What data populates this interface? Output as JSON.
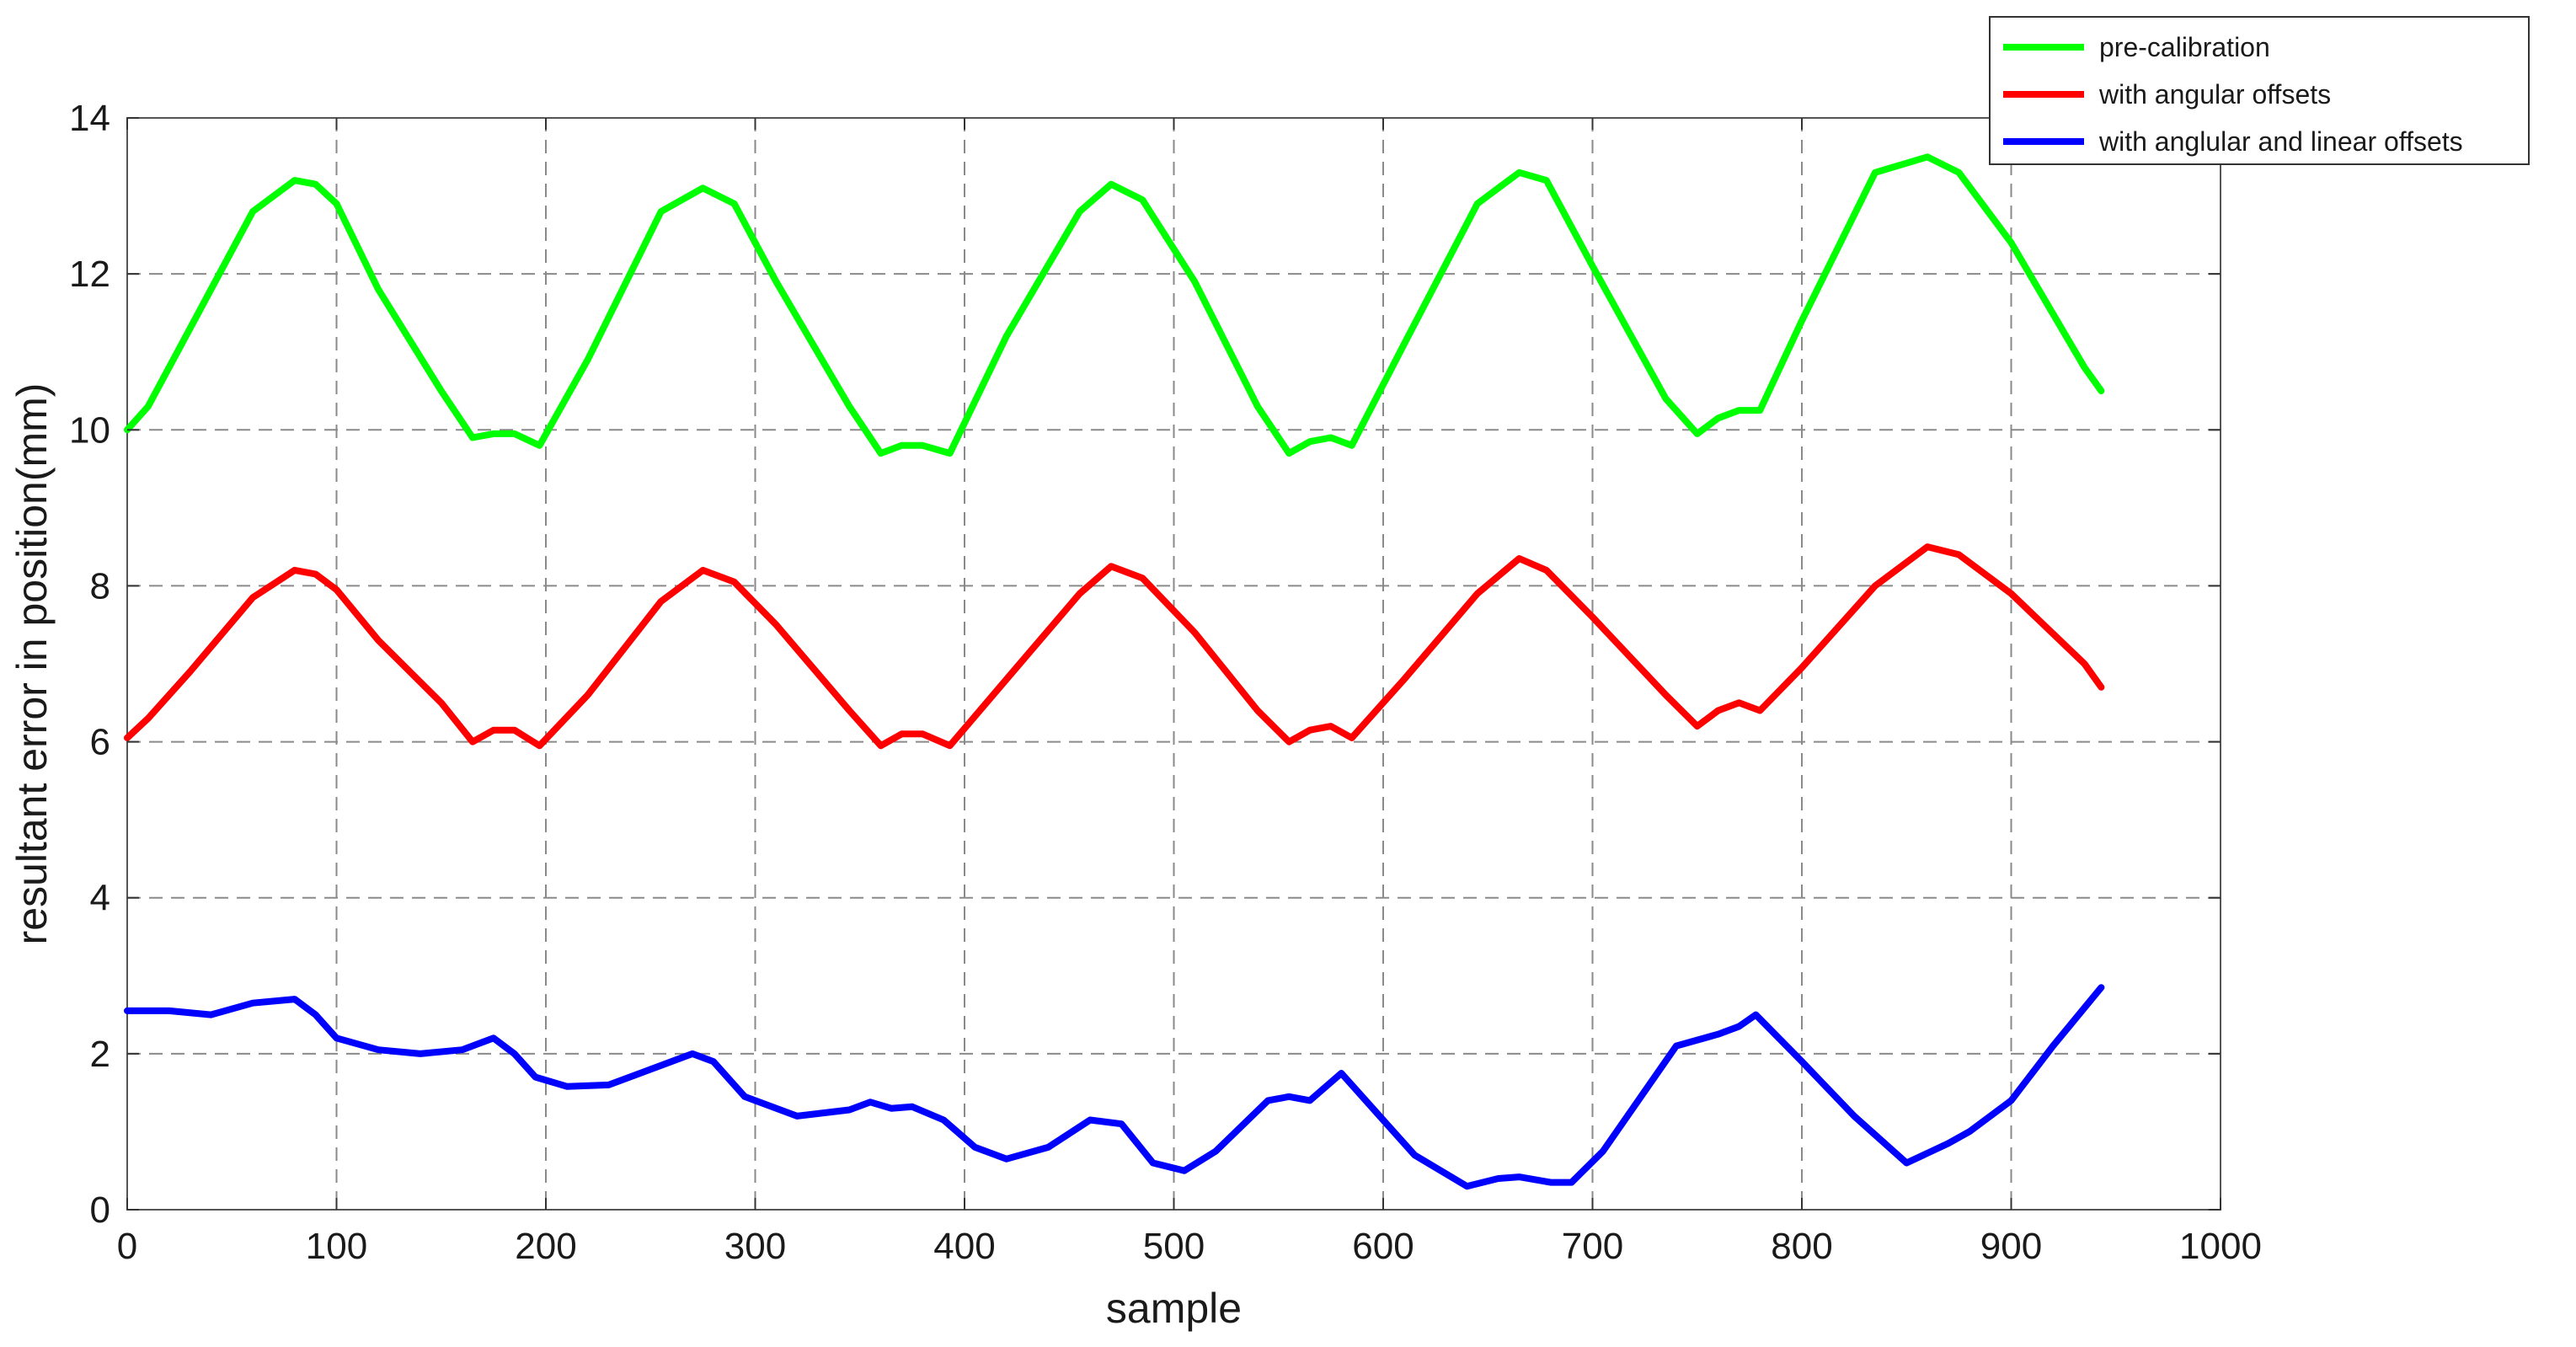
{
  "chart_data": {
    "type": "line",
    "xlabel": "sample",
    "ylabel": "resultant error in position(mm)",
    "xlim": [
      0,
      1000
    ],
    "ylim": [
      0,
      14
    ],
    "xticks": [
      0,
      100,
      200,
      300,
      400,
      500,
      600,
      700,
      800,
      900,
      1000
    ],
    "yticks": [
      0,
      2,
      4,
      6,
      8,
      10,
      12,
      14
    ],
    "grid": true,
    "legend_position": "top-right",
    "series": [
      {
        "name": "pre-calibration",
        "color": "#00ff00",
        "x": [
          0,
          10,
          30,
          60,
          80,
          90,
          100,
          120,
          150,
          165,
          175,
          185,
          197,
          220,
          255,
          275,
          290,
          310,
          345,
          360,
          370,
          380,
          393,
          420,
          455,
          470,
          485,
          510,
          540,
          555,
          565,
          575,
          585,
          610,
          645,
          665,
          678,
          700,
          735,
          750,
          760,
          770,
          780,
          800,
          835,
          860,
          875,
          900,
          935,
          943
        ],
        "values": [
          10.0,
          10.3,
          11.3,
          12.8,
          13.2,
          13.15,
          12.9,
          11.8,
          10.5,
          9.9,
          9.95,
          9.95,
          9.8,
          10.9,
          12.8,
          13.1,
          12.9,
          11.9,
          10.3,
          9.7,
          9.8,
          9.8,
          9.7,
          11.2,
          12.8,
          13.15,
          12.95,
          11.9,
          10.3,
          9.7,
          9.85,
          9.9,
          9.8,
          11.1,
          12.9,
          13.3,
          13.2,
          12.1,
          10.4,
          9.95,
          10.15,
          10.25,
          10.25,
          11.4,
          13.3,
          13.5,
          13.3,
          12.4,
          10.8,
          10.5
        ]
      },
      {
        "name": "with angular offsets",
        "color": "#ff0000",
        "x": [
          0,
          10,
          30,
          60,
          80,
          90,
          100,
          120,
          150,
          165,
          175,
          185,
          197,
          220,
          255,
          275,
          290,
          310,
          345,
          360,
          370,
          380,
          393,
          420,
          455,
          470,
          485,
          510,
          540,
          555,
          565,
          575,
          585,
          610,
          645,
          665,
          678,
          700,
          735,
          750,
          760,
          770,
          780,
          800,
          835,
          860,
          875,
          900,
          935,
          943
        ],
        "values": [
          6.05,
          6.3,
          6.9,
          7.85,
          8.2,
          8.15,
          7.95,
          7.3,
          6.5,
          6.0,
          6.15,
          6.15,
          5.95,
          6.6,
          7.8,
          8.2,
          8.05,
          7.5,
          6.4,
          5.95,
          6.1,
          6.1,
          5.95,
          6.8,
          7.9,
          8.25,
          8.1,
          7.4,
          6.4,
          6.0,
          6.15,
          6.2,
          6.05,
          6.8,
          7.9,
          8.35,
          8.2,
          7.6,
          6.6,
          6.2,
          6.4,
          6.5,
          6.4,
          6.95,
          8.0,
          8.5,
          8.4,
          7.9,
          7.0,
          6.7
        ]
      },
      {
        "name": "with anglular and linear offsets",
        "color": "#0000ff",
        "x": [
          0,
          20,
          40,
          60,
          80,
          90,
          100,
          120,
          140,
          160,
          175,
          185,
          195,
          210,
          230,
          250,
          270,
          280,
          295,
          320,
          345,
          355,
          365,
          375,
          390,
          405,
          420,
          440,
          460,
          475,
          490,
          505,
          520,
          545,
          555,
          565,
          580,
          595,
          615,
          640,
          655,
          665,
          680,
          690,
          705,
          740,
          760,
          770,
          778,
          800,
          825,
          850,
          870,
          880,
          900,
          920,
          943
        ],
        "values": [
          2.55,
          2.55,
          2.5,
          2.65,
          2.7,
          2.5,
          2.2,
          2.05,
          2.0,
          2.05,
          2.2,
          2.0,
          1.7,
          1.58,
          1.6,
          1.8,
          2.0,
          1.9,
          1.45,
          1.2,
          1.28,
          1.38,
          1.3,
          1.32,
          1.15,
          0.8,
          0.65,
          0.8,
          1.15,
          1.1,
          0.6,
          0.5,
          0.75,
          1.4,
          1.45,
          1.4,
          1.75,
          1.3,
          0.7,
          0.3,
          0.4,
          0.42,
          0.35,
          0.35,
          0.75,
          2.1,
          2.25,
          2.35,
          2.5,
          1.9,
          1.2,
          0.6,
          0.85,
          1.0,
          1.4,
          2.1,
          2.85
        ]
      }
    ]
  }
}
